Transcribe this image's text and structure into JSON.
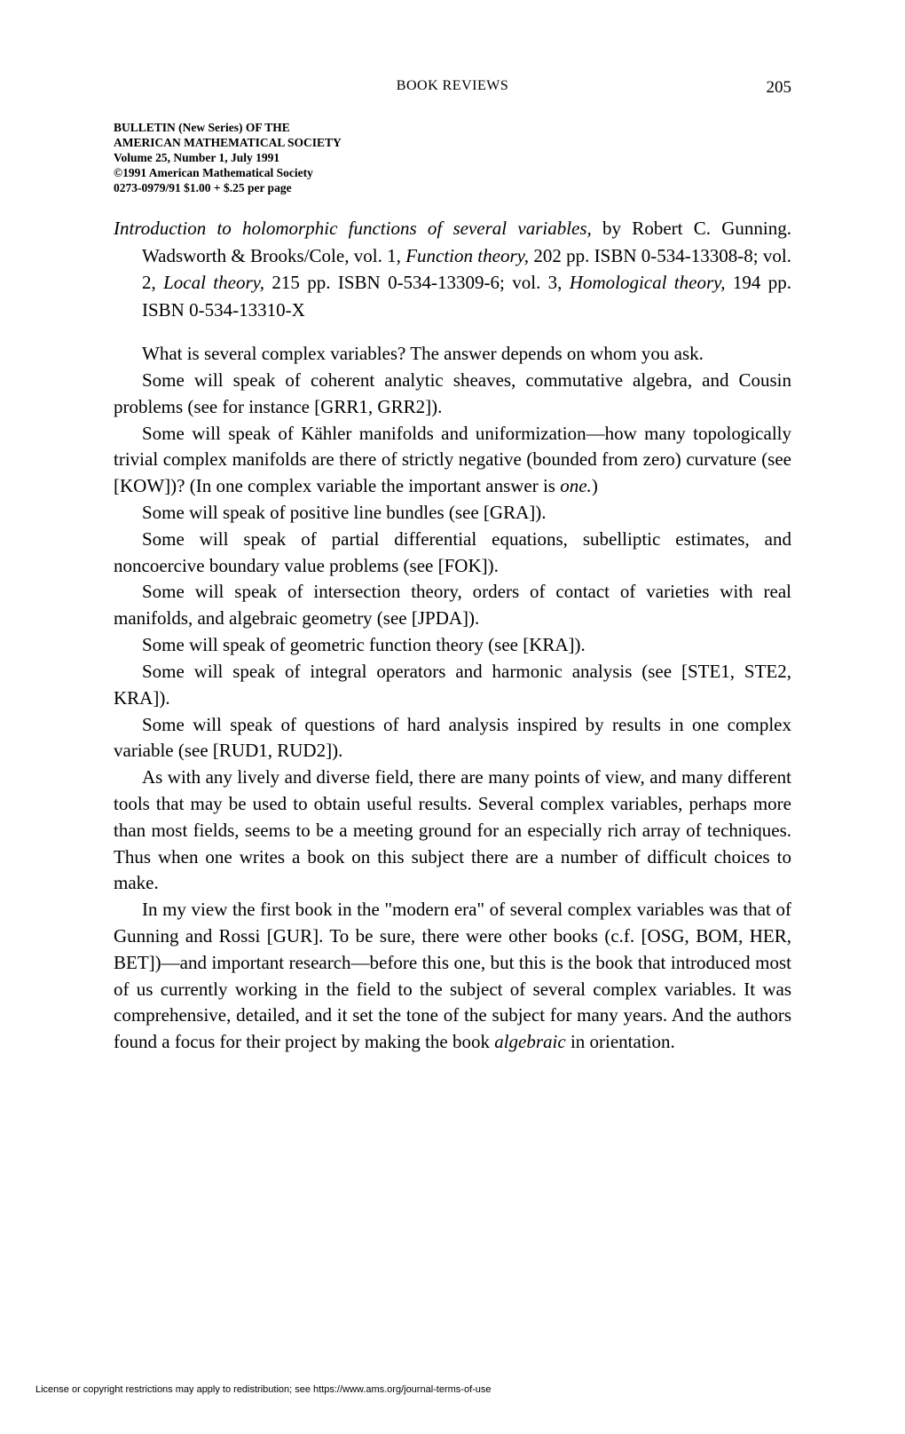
{
  "header": {
    "running_head": "BOOK REVIEWS",
    "page_number": "205"
  },
  "masthead": {
    "line1": "BULLETIN (New Series) OF THE",
    "line2": "AMERICAN MATHEMATICAL SOCIETY",
    "line3": "Volume 25, Number 1, July 1991",
    "line4": "©1991 American Mathematical Society",
    "line5": "0273-0979/91  $1.00 + $.25  per page"
  },
  "review": {
    "title_italic": "Introduction to holomorphic functions of several variables,",
    "title_after": " by Robert C. Gunning. Wadsworth & Brooks/Cole, vol. 1, ",
    "vol1_italic": "Function theory,",
    "vol1_after": " 202 pp. ISBN 0-534-13308-8; vol. 2, ",
    "vol2_italic": "Local theory,",
    "vol2_after": " 215 pp. ISBN 0-534-13309-6; vol. 3, ",
    "vol3_italic": "Homological theory,",
    "vol3_after": " 194 pp. ISBN 0-534-13310-X"
  },
  "paragraphs": {
    "p1": "What is several complex variables?  The answer depends on whom you ask.",
    "p2": "Some will speak of coherent analytic sheaves, commutative algebra, and Cousin problems (see for instance [GRR1, GRR2]).",
    "p3_a": "Some will speak of Kähler manifolds and uniformization—how many topologically trivial complex manifolds are there of strictly negative (bounded from zero) curvature (see [KOW])? (In one complex variable the important answer is ",
    "p3_i": "one.",
    "p3_b": ")",
    "p4": "Some will speak of positive line bundles (see [GRA]).",
    "p5": "Some will speak of partial differential equations, subelliptic estimates, and noncoercive boundary value problems (see [FOK]).",
    "p6": "Some will speak of intersection theory, orders of contact of varieties with real manifolds, and algebraic geometry (see [JPDA]).",
    "p7": "Some will speak of geometric function theory (see [KRA]).",
    "p8": "Some will speak of integral operators and harmonic analysis (see [STE1, STE2, KRA]).",
    "p9": "Some will speak of questions of hard analysis inspired by results in one complex variable (see [RUD1, RUD2]).",
    "p10": "As with any lively and diverse field, there are many points of view, and many different tools that may be used to obtain useful results. Several complex variables, perhaps more than most fields, seems to be a meeting ground for an especially rich array of techniques. Thus when one writes a book on this subject there are a number of difficult choices to make.",
    "p11_a": "In my view the first book in the \"modern era\" of several complex variables was that of Gunning and Rossi [GUR]. To be sure, there were other books (c.f. [OSG, BOM, HER, BET])—and important research—before this one, but this is the book that introduced most of us currently working in the field to the subject of several complex variables. It was comprehensive, detailed, and it set the tone of the subject for many years. And the authors found a focus for their project by making the book ",
    "p11_i": "algebraic",
    "p11_b": " in orientation."
  },
  "footer": {
    "text": "License or copyright restrictions may apply to redistribution; see https://www.ams.org/journal-terms-of-use"
  },
  "colors": {
    "background": "#ffffff",
    "text": "#000000"
  }
}
